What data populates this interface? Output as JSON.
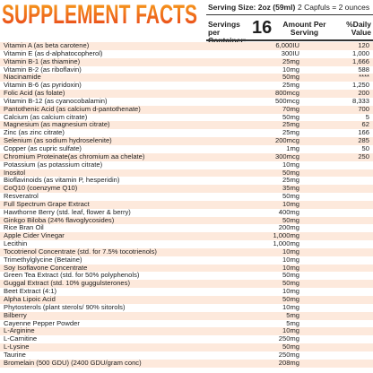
{
  "header": {
    "title": "SUPPLEMENT FACTS",
    "serving_size": "Serving Size: 2oz (59ml)",
    "capfuls": "2 Capfuls = 2 ounces",
    "servings_label": "Servings per Container:",
    "servings": "16",
    "amount_label": "Amount Per Serving",
    "dv_label": "%Daily Value"
  },
  "rows": [
    [
      "Vitamin A (as beta carotene)",
      "6,000IU",
      "120"
    ],
    [
      "Vitamin E (as d-alphatocopherol)",
      "300IU",
      "1,000"
    ],
    [
      "Vitamin B-1 (as thiamine)",
      "25mg",
      "1,666"
    ],
    [
      "Vitamin B-2 (as riboflavin)",
      "10mg",
      "588"
    ],
    [
      "Niacinamide",
      "50mg",
      "****"
    ],
    [
      "Vitamin B-6 (as pyridoxin)",
      "25mg",
      "1,250"
    ],
    [
      "Folic Acid (as folate)",
      "800mcg",
      "200"
    ],
    [
      "Vitamin B-12 (as cyanocobalamin)",
      "500mcg",
      "8,333"
    ],
    [
      "Pantothenic Acid (as calcium d-pantothenate)",
      "70mg",
      "700"
    ],
    [
      "Calcium (as calcium citrate)",
      "50mg",
      "5"
    ],
    [
      "Magnesium (as magnesium citrate)",
      "25mg",
      "62"
    ],
    [
      "Zinc (as zinc citrate)",
      "25mg",
      "166"
    ],
    [
      "Selenium (as sodium hydroselenite)",
      "200mcg",
      "285"
    ],
    [
      "Copper (as cupric sulfate)",
      "1mg",
      "50"
    ],
    [
      "Chromium Proteinate(as chromium aa chelate)",
      "300mcg",
      "250"
    ],
    [
      "Potassium (as potassium citrate)",
      "10mg"
    ],
    [
      "Inositol",
      "50mg"
    ],
    [
      "Bioflavinoids (as vitamin P, hesperidin)",
      "25mg"
    ],
    [
      "CoQ10 (coenzyme Q10)",
      "35mg"
    ],
    [
      "Resveratrol",
      "50mg"
    ],
    [
      "Full Spectrum Grape Extract",
      "10mg"
    ],
    [
      "Hawthorne Berry (std. leaf, flower & berry)",
      "400mg"
    ],
    [
      "Ginkgo Biloba (24% flavoglycosides)",
      "50mg"
    ],
    [
      "Rice Bran Oil",
      "200mg"
    ],
    [
      "Apple Cider Vinegar",
      "1,000mg"
    ],
    [
      "Lecithin",
      "1,000mg"
    ],
    [
      "Tocotrienol Concentrate (std. for 7.5% tocotrienols)",
      "10mg"
    ],
    [
      "Trimethylglycine (Betaine)",
      "10mg"
    ],
    [
      "Soy Isoflavone Concentrate",
      "10mg"
    ],
    [
      "Green Tea Extract (std. for 50% polyphenols)",
      "50mg"
    ],
    [
      "Guggal Extract (std. 10% guggulsterones)",
      "50mg"
    ],
    [
      "Beet Extract (4:1)",
      "10mg"
    ],
    [
      "Alpha Lipoic Acid",
      "50mg"
    ],
    [
      "Phytosterols (plant sterols/ 90% sitorols)",
      "10mg"
    ],
    [
      "Bilberry",
      "5mg"
    ],
    [
      "Cayenne Pepper Powder",
      "5mg"
    ],
    [
      "L-Arginine",
      "10mg"
    ],
    [
      "L-Carnitine",
      "250mg"
    ],
    [
      "L-Lysine",
      "50mg"
    ],
    [
      "Taurine",
      "250mg"
    ],
    [
      "Bromelain (500 GDU) (2400 GDU/gram conc)",
      "208mg"
    ]
  ]
}
